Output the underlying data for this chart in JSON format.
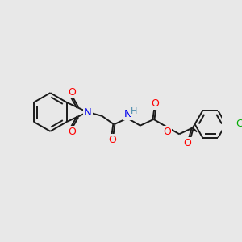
{
  "bg_color": "#e8e8e8",
  "bond_color": "#1a1a1a",
  "atom_colors": {
    "O": "#ff0000",
    "N": "#0000ee",
    "Cl": "#00aa00",
    "H": "#4488aa",
    "C": "#1a1a1a"
  },
  "font_size": 8.5,
  "lw": 1.4,
  "fig_size": [
    3.0,
    3.0
  ],
  "dpi": 100
}
